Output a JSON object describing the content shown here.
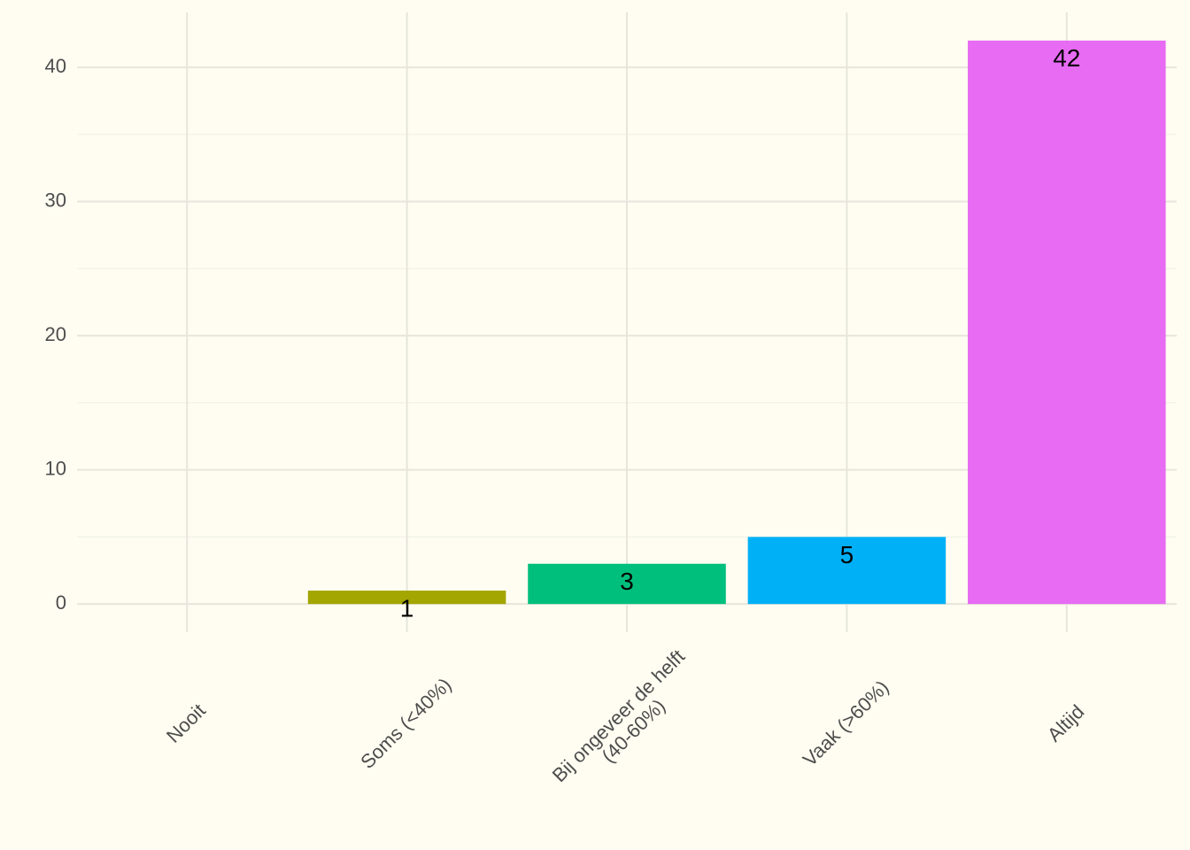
{
  "chart_data": {
    "type": "bar",
    "categories": [
      "Nooit",
      "Soms (<40%)",
      "Bij ongeveer de helft\n(40-60%)",
      "Vaak (>60%)",
      "Altijd"
    ],
    "values": [
      null,
      1,
      3,
      5,
      42
    ],
    "colors": [
      "#F8766D",
      "#A3A500",
      "#00BF7D",
      "#00B0F6",
      "#E76BF3"
    ],
    "ylim": [
      -2.1,
      44.1
    ],
    "yticks": [
      0,
      10,
      20,
      30,
      40
    ],
    "grid": true
  }
}
